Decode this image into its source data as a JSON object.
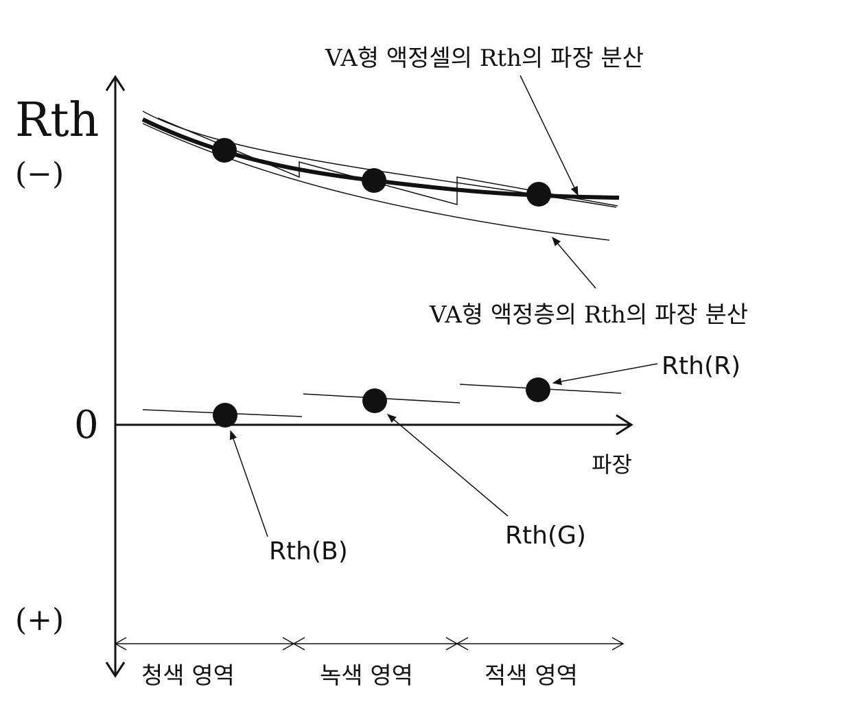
{
  "axes": {
    "y_label": "Rth",
    "y_top_sign": "(−)",
    "y_zero": "0",
    "y_bottom_sign": "(+)",
    "x_label": "파장"
  },
  "annotations": {
    "cell_curve_label": "VA형 액정셀의 Rth의 파장 분산",
    "layer_curve_label": "VA형 액정층의 Rth의 파장 분산",
    "rth_r": "Rth(R)",
    "rth_g": "Rth(G)",
    "rth_b": "Rth(B)"
  },
  "regions": {
    "blue": "청색 영역",
    "green": "녹색 영역",
    "red": "적색 영역"
  },
  "colors": {
    "ink": "#111111",
    "background": "#ffffff"
  }
}
